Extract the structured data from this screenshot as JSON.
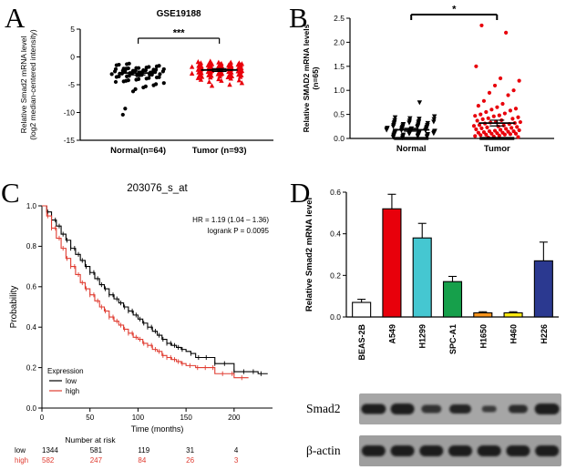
{
  "panel_labels": {
    "a": "A",
    "b": "B",
    "c": "C",
    "d": "D"
  },
  "blots": {
    "rows": [
      {
        "label": "Smad2",
        "bg": "#a6a6a6",
        "bands": [
          {
            "w": 27,
            "h": 11,
            "o": 0.95
          },
          {
            "w": 26,
            "h": 12,
            "o": 0.95
          },
          {
            "w": 22,
            "h": 9,
            "o": 0.8
          },
          {
            "w": 24,
            "h": 10,
            "o": 0.9
          },
          {
            "w": 16,
            "h": 7,
            "o": 0.75
          },
          {
            "w": 21,
            "h": 9,
            "o": 0.85
          },
          {
            "w": 27,
            "h": 12,
            "o": 0.95
          }
        ]
      },
      {
        "label": "β-actin",
        "bg": "#9e9e9e",
        "bands": [
          {
            "w": 26,
            "h": 12,
            "o": 0.95
          },
          {
            "w": 26,
            "h": 12,
            "o": 0.95
          },
          {
            "w": 26,
            "h": 12,
            "o": 0.95
          },
          {
            "w": 26,
            "h": 12,
            "o": 0.95
          },
          {
            "w": 26,
            "h": 12,
            "o": 0.95
          },
          {
            "w": 26,
            "h": 12,
            "o": 0.95
          },
          {
            "w": 26,
            "h": 12,
            "o": 0.95
          }
        ]
      }
    ]
  },
  "chart_data": [
    {
      "id": "panel-a",
      "type": "scatter",
      "title": "GSE19188",
      "ylabel_lines": [
        "Relative Smad2 mRNA level",
        "(log2 median-centered intensity)"
      ],
      "ylim": [
        -15,
        5
      ],
      "yticks": [
        5,
        0,
        -5,
        -10,
        -15
      ],
      "significance": "***",
      "groups": [
        {
          "name": "Normal(n=64)",
          "color": "#000000",
          "marker": "circle",
          "jm": 37,
          "mean": -2.9,
          "sem": 0.35,
          "values": [
            -1.2,
            -1.3,
            -1.4,
            -1.5,
            -1.6,
            -1.7,
            -1.8,
            -1.9,
            -2.0,
            -2.0,
            -2.05,
            -2.1,
            -2.1,
            -2.2,
            -2.2,
            -2.3,
            -2.3,
            -2.4,
            -2.4,
            -2.45,
            -2.5,
            -2.5,
            -2.5,
            -2.6,
            -2.6,
            -2.7,
            -2.7,
            -2.8,
            -2.8,
            -2.85,
            -2.9,
            -2.9,
            -3.0,
            -3.0,
            -3.1,
            -3.1,
            -3.2,
            -3.2,
            -3.25,
            -3.3,
            -3.3,
            -3.4,
            -3.5,
            -3.5,
            -3.6,
            -3.65,
            -3.7,
            -3.8,
            -3.9,
            -4.0,
            -4.1,
            -4.2,
            -4.3,
            -4.4,
            -4.5,
            -4.7,
            -4.9,
            -5.1,
            -5.3,
            -5.5,
            -5.8,
            -6.2,
            -9.3,
            -10.4
          ]
        },
        {
          "name": "Tumor (n=93)",
          "color": "#e8000b",
          "marker": "triangle-up",
          "jm": 29,
          "mean": -2.35,
          "sem": 0.25,
          "values": [
            -0.8,
            -0.9,
            -1.0,
            -1.0,
            -1.1,
            -1.1,
            -1.2,
            -1.2,
            -1.25,
            -1.3,
            -1.3,
            -1.4,
            -1.4,
            -1.4,
            -1.5,
            -1.5,
            -1.5,
            -1.55,
            -1.6,
            -1.6,
            -1.6,
            -1.7,
            -1.7,
            -1.7,
            -1.8,
            -1.8,
            -1.8,
            -1.85,
            -1.9,
            -1.9,
            -1.9,
            -2.0,
            -2.0,
            -2.0,
            -2.0,
            -2.1,
            -2.1,
            -2.1,
            -2.15,
            -2.2,
            -2.2,
            -2.2,
            -2.3,
            -2.3,
            -2.3,
            -2.4,
            -2.4,
            -2.4,
            -2.45,
            -2.5,
            -2.5,
            -2.5,
            -2.6,
            -2.6,
            -2.6,
            -2.7,
            -2.7,
            -2.7,
            -2.75,
            -2.8,
            -2.8,
            -2.8,
            -2.9,
            -2.9,
            -3.0,
            -3.0,
            -3.0,
            -3.05,
            -3.1,
            -3.1,
            -3.2,
            -3.2,
            -3.3,
            -3.3,
            -3.35,
            -3.4,
            -3.4,
            -3.5,
            -3.5,
            -3.6,
            -3.6,
            -3.65,
            -3.7,
            -3.8,
            -3.9,
            -4.0,
            -4.1,
            -4.2,
            -4.3,
            -4.5,
            -4.7,
            -5.0,
            -5.2
          ]
        }
      ]
    },
    {
      "id": "panel-b",
      "type": "scatter",
      "title": "",
      "ylabel_lines": [
        "Relative SMAD2 mRNA levels",
        "(n=65)"
      ],
      "ylim": [
        0,
        2.5
      ],
      "yticks": [
        0,
        0.5,
        1.0,
        1.5,
        2.0,
        2.5
      ],
      "significance": "*",
      "groups": [
        {
          "name": "Normal",
          "color": "#000000",
          "marker": "triangle-down",
          "jm": 31,
          "mean": 0.18,
          "sem": 0.03,
          "values": [
            0.02,
            0.03,
            0.04,
            0.05,
            0.05,
            0.06,
            0.06,
            0.07,
            0.08,
            0.08,
            0.09,
            0.09,
            0.1,
            0.1,
            0.11,
            0.11,
            0.12,
            0.12,
            0.13,
            0.13,
            0.13,
            0.14,
            0.14,
            0.15,
            0.15,
            0.16,
            0.16,
            0.17,
            0.17,
            0.17,
            0.18,
            0.18,
            0.19,
            0.2,
            0.2,
            0.21,
            0.21,
            0.22,
            0.22,
            0.23,
            0.24,
            0.24,
            0.25,
            0.25,
            0.26,
            0.27,
            0.28,
            0.28,
            0.29,
            0.3,
            0.31,
            0.32,
            0.33,
            0.33,
            0.34,
            0.35,
            0.36,
            0.37,
            0.38,
            0.4,
            0.41,
            0.42,
            0.44,
            0.46,
            0.75
          ]
        },
        {
          "name": "Tumor",
          "color": "#e8000b",
          "marker": "circle",
          "jm": 23,
          "mean": 0.32,
          "sem": 0.06,
          "values": [
            0.02,
            0.03,
            0.04,
            0.05,
            0.06,
            0.07,
            0.08,
            0.08,
            0.09,
            0.1,
            0.1,
            0.11,
            0.12,
            0.12,
            0.13,
            0.14,
            0.15,
            0.15,
            0.16,
            0.17,
            0.18,
            0.19,
            0.2,
            0.21,
            0.22,
            0.23,
            0.24,
            0.25,
            0.26,
            0.27,
            0.28,
            0.3,
            0.31,
            0.32,
            0.33,
            0.34,
            0.35,
            0.37,
            0.38,
            0.4,
            0.41,
            0.42,
            0.44,
            0.46,
            0.47,
            0.48,
            0.5,
            0.52,
            0.55,
            0.58,
            0.6,
            0.62,
            0.65,
            0.68,
            0.72,
            0.78,
            0.9,
            0.95,
            1.0,
            1.1,
            1.2,
            1.25,
            1.5,
            2.2,
            2.35
          ]
        }
      ]
    },
    {
      "id": "panel-c",
      "type": "line",
      "title": "203076_s_at",
      "xlabel": "Time (months)",
      "ylabel": "Probability",
      "xlim": [
        0,
        240
      ],
      "xticks": [
        0,
        50,
        100,
        150,
        200
      ],
      "ylim": [
        0,
        1
      ],
      "yticks": [
        0,
        0.2,
        0.4,
        0.6,
        0.8,
        1.0
      ],
      "annotation_lines": [
        "HR = 1.19 (1.04 – 1.36)",
        "logrank P = 0.0095"
      ],
      "legend_title": "Expression",
      "series": [
        {
          "name": "low",
          "color": "#000000",
          "censor_extra": [
            155,
            163,
            171,
            180,
            190,
            200,
            210,
            220,
            228
          ],
          "points": [
            [
              0,
              1.0
            ],
            [
              5,
              0.97
            ],
            [
              10,
              0.93
            ],
            [
              15,
              0.9
            ],
            [
              20,
              0.86
            ],
            [
              25,
              0.83
            ],
            [
              30,
              0.79
            ],
            [
              35,
              0.76
            ],
            [
              40,
              0.73
            ],
            [
              45,
              0.7
            ],
            [
              50,
              0.67
            ],
            [
              55,
              0.64
            ],
            [
              60,
              0.61
            ],
            [
              65,
              0.59
            ],
            [
              70,
              0.56
            ],
            [
              75,
              0.54
            ],
            [
              80,
              0.52
            ],
            [
              85,
              0.5
            ],
            [
              90,
              0.48
            ],
            [
              95,
              0.46
            ],
            [
              100,
              0.44
            ],
            [
              105,
              0.42
            ],
            [
              110,
              0.4
            ],
            [
              115,
              0.38
            ],
            [
              120,
              0.36
            ],
            [
              125,
              0.34
            ],
            [
              130,
              0.32
            ],
            [
              135,
              0.31
            ],
            [
              140,
              0.3
            ],
            [
              145,
              0.29
            ],
            [
              150,
              0.28
            ],
            [
              155,
              0.27
            ],
            [
              160,
              0.25
            ],
            [
              170,
              0.25
            ],
            [
              180,
              0.22
            ],
            [
              190,
              0.22
            ],
            [
              200,
              0.18
            ],
            [
              210,
              0.18
            ],
            [
              225,
              0.17
            ],
            [
              235,
              0.17
            ]
          ]
        },
        {
          "name": "high",
          "color": "#e03c31",
          "censor_extra": [
            154,
            162,
            170,
            178,
            188,
            198,
            208
          ],
          "points": [
            [
              0,
              1.0
            ],
            [
              5,
              0.95
            ],
            [
              10,
              0.89
            ],
            [
              15,
              0.84
            ],
            [
              20,
              0.79
            ],
            [
              25,
              0.74
            ],
            [
              30,
              0.7
            ],
            [
              35,
              0.66
            ],
            [
              40,
              0.62
            ],
            [
              45,
              0.59
            ],
            [
              50,
              0.56
            ],
            [
              55,
              0.53
            ],
            [
              60,
              0.5
            ],
            [
              65,
              0.48
            ],
            [
              70,
              0.45
            ],
            [
              75,
              0.43
            ],
            [
              80,
              0.41
            ],
            [
              85,
              0.39
            ],
            [
              90,
              0.37
            ],
            [
              95,
              0.35
            ],
            [
              100,
              0.34
            ],
            [
              105,
              0.32
            ],
            [
              110,
              0.31
            ],
            [
              115,
              0.29
            ],
            [
              120,
              0.28
            ],
            [
              125,
              0.26
            ],
            [
              130,
              0.25
            ],
            [
              135,
              0.24
            ],
            [
              140,
              0.23
            ],
            [
              145,
              0.22
            ],
            [
              150,
              0.21
            ],
            [
              160,
              0.2
            ],
            [
              170,
              0.2
            ],
            [
              180,
              0.17
            ],
            [
              200,
              0.15
            ],
            [
              215,
              0.15
            ]
          ]
        }
      ],
      "risk_table": {
        "header": "Number at risk",
        "times": [
          0,
          50,
          100,
          150,
          200
        ],
        "rows": [
          {
            "name": "low",
            "color": "#000000",
            "counts": [
              1344,
              581,
              119,
              31,
              4
            ]
          },
          {
            "name": "high",
            "color": "#e03c31",
            "counts": [
              582,
              247,
              84,
              26,
              3
            ]
          }
        ]
      }
    },
    {
      "id": "panel-d",
      "type": "bar",
      "ylabel": "Relative Smad2 mRNA level",
      "categories": [
        "BEAS-2B",
        "A549",
        "H1299",
        "SPC-A1",
        "H1650",
        "H460",
        "H226"
      ],
      "values": [
        0.07,
        0.52,
        0.38,
        0.17,
        0.02,
        0.02,
        0.27
      ],
      "errors": [
        0.015,
        0.07,
        0.07,
        0.025,
        0.005,
        0.005,
        0.09
      ],
      "colors": [
        "#ffffff",
        "#e8000b",
        "#45c7d1",
        "#16a04b",
        "#f7941d",
        "#fde910",
        "#2b3990"
      ],
      "ylim": [
        0,
        0.6
      ],
      "yticks": [
        0,
        0.2,
        0.4,
        0.6
      ]
    }
  ]
}
